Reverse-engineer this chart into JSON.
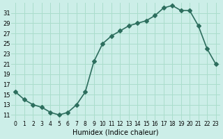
{
  "x": [
    0,
    1,
    2,
    3,
    4,
    5,
    6,
    7,
    8,
    9,
    10,
    11,
    12,
    13,
    14,
    15,
    16,
    17,
    18,
    19,
    20,
    21,
    22,
    23
  ],
  "y": [
    15.5,
    14.0,
    13.0,
    12.5,
    11.5,
    11.0,
    11.5,
    13.0,
    15.5,
    21.5,
    25.0,
    26.5,
    27.5,
    28.5,
    29.0,
    29.5,
    30.5,
    32.0,
    32.5,
    31.5,
    31.5,
    28.5,
    24.0,
    21.0
  ],
  "xlabel": "Humidex (Indice chaleur)",
  "ylim": [
    10,
    33
  ],
  "xlim": [
    -0.5,
    23.5
  ],
  "yticks": [
    11,
    13,
    15,
    17,
    19,
    21,
    23,
    25,
    27,
    29,
    31
  ],
  "xtick_labels": [
    "0",
    "1",
    "2",
    "3",
    "4",
    "5",
    "6",
    "7",
    "8",
    "9",
    "10",
    "11",
    "12",
    "13",
    "14",
    "15",
    "16",
    "17",
    "18",
    "19",
    "20",
    "21",
    "22",
    "23"
  ],
  "line_color": "#2d6e5e",
  "marker_color": "#2d6e5e",
  "bg_color": "#cceee8",
  "grid_color": "#aaddcc"
}
